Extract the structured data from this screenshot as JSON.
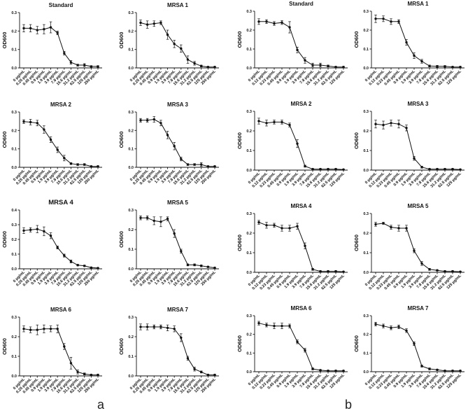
{
  "panel_labels": {
    "a": "a",
    "b": "b"
  },
  "chart_data": [
    {
      "panel": "a",
      "type": "line",
      "title": "Standard",
      "ylabel": "OD600",
      "ylim": [
        0,
        0.3
      ],
      "yticks": [
        "0.0",
        "0.1",
        "0.2",
        "0.3"
      ],
      "categories": [
        "0 µg/mL",
        "0.25 µg/mL",
        "0.45 µg/mL",
        "0.9 µg/mL",
        "1.9 µg/mL",
        "3.9 µg/mL",
        "7.8 µg/mL",
        "15.6 µg/mL",
        "31.2 µg/mL",
        "62.5 µg/mL",
        "125 µg/mL",
        "250 µg/mL"
      ],
      "series": [
        {
          "values": [
            0.215,
            0.215,
            0.205,
            0.21,
            0.22,
            0.19,
            0.08,
            0.03,
            0.015,
            0.015,
            0.008,
            0.008
          ],
          "errors": [
            0.02,
            0.02,
            0.02,
            0.025,
            0.03,
            0.01,
            0.01,
            0.01,
            0.005,
            0.008,
            0.004,
            0.004
          ]
        }
      ]
    },
    {
      "panel": "a",
      "type": "line",
      "title": "MRSA 1",
      "ylabel": "OD600",
      "ylim": [
        0,
        0.3
      ],
      "yticks": [
        "0.0",
        "0.1",
        "0.2",
        "0.3"
      ],
      "categories": [
        "0 µg/mL",
        "0.25 µg/mL",
        "0.45 µg/mL",
        "0.9 µg/mL",
        "1.9 µg/mL",
        "3.9 µg/mL",
        "7.8 µg/mL",
        "15.6 µg/mL",
        "31.2 µg/mL",
        "62.5 µg/mL",
        "125 µg/mL",
        "250 µg/mL"
      ],
      "series": [
        {
          "values": [
            0.245,
            0.235,
            0.24,
            0.245,
            0.18,
            0.13,
            0.105,
            0.045,
            0.025,
            0.01,
            0.005,
            0.005
          ],
          "errors": [
            0.015,
            0.02,
            0.015,
            0.01,
            0.025,
            0.02,
            0.02,
            0.02,
            0.01,
            0.005,
            0.003,
            0.003
          ]
        }
      ]
    },
    {
      "panel": "a",
      "type": "line",
      "title": "MRSA 2",
      "ylabel": "OD600",
      "ylim": [
        0,
        0.3
      ],
      "yticks": [
        "0.0",
        "0.1",
        "0.2",
        "0.3"
      ],
      "categories": [
        "0 µg/mL",
        "0.25 µg/mL",
        "0.45 µg/mL",
        "0.9 µg/mL",
        "1.9 µg/mL",
        "3.9 µg/mL",
        "7.8 µg/mL",
        "15.6 µg/mL",
        "31.2 µg/mL",
        "62.5 µg/mL",
        "125 µg/mL",
        "250 µg/mL"
      ],
      "series": [
        {
          "values": [
            0.248,
            0.245,
            0.24,
            0.205,
            0.15,
            0.095,
            0.05,
            0.02,
            0.015,
            0.015,
            0.005,
            0.005
          ],
          "errors": [
            0.01,
            0.015,
            0.015,
            0.02,
            0.015,
            0.015,
            0.015,
            0.005,
            0.005,
            0.005,
            0.003,
            0.003
          ]
        }
      ]
    },
    {
      "panel": "a",
      "type": "line",
      "title": "MRSA 3",
      "ylabel": "OD600",
      "ylim": [
        0,
        0.3
      ],
      "yticks": [
        "0.0",
        "0.1",
        "0.2",
        "0.3"
      ],
      "categories": [
        "0 µg/mL",
        "0.25 µg/mL",
        "0.45 µg/mL",
        "0.9 µg/mL",
        "1.9 µg/mL",
        "3.9 µg/mL",
        "7.8 µg/mL",
        "15.6 µg/mL",
        "31.2 µg/mL",
        "62.5 µg/mL",
        "125 µg/mL",
        "250 µg/mL"
      ],
      "series": [
        {
          "values": [
            0.255,
            0.255,
            0.26,
            0.24,
            0.175,
            0.115,
            0.045,
            0.015,
            0.015,
            0.015,
            0.005,
            0.005
          ],
          "errors": [
            0.01,
            0.01,
            0.015,
            0.015,
            0.02,
            0.02,
            0.01,
            0.005,
            0.005,
            0.01,
            0.003,
            0.003
          ]
        }
      ]
    },
    {
      "panel": "a",
      "type": "line",
      "title": "MRSA 4",
      "ylabel": "OD600",
      "ylim": [
        0,
        0.4
      ],
      "yticks": [
        "0.0",
        "0.1",
        "0.2",
        "0.3",
        "0.4"
      ],
      "categories": [
        "0 µg/mL",
        "0.25 µg/mL",
        "0.45 µg/mL",
        "0.9 µg/mL",
        "1.9 µg/mL",
        "3.9 µg/mL",
        "7.8 µg/mL",
        "15.6 µg/mL",
        "31.2 µg/mL",
        "62.5 µg/mL",
        "125 µg/mL",
        "250 µg/mL"
      ],
      "series": [
        {
          "values": [
            0.26,
            0.265,
            0.27,
            0.255,
            0.225,
            0.145,
            0.09,
            0.05,
            0.025,
            0.02,
            0.008,
            0.005
          ],
          "errors": [
            0.02,
            0.015,
            0.025,
            0.03,
            0.02,
            0.01,
            0.01,
            0.01,
            0.005,
            0.005,
            0.004,
            0.003
          ]
        }
      ]
    },
    {
      "panel": "a",
      "type": "line",
      "title": "MRSA 5",
      "ylabel": "OD600",
      "ylim": [
        0,
        0.3
      ],
      "yticks": [
        "0.0",
        "0.1",
        "0.2",
        "0.3"
      ],
      "categories": [
        "0 µg/mL",
        "0.25 µg/mL",
        "0.45 µg/mL",
        "0.9 µg/mL",
        "1.9 µg/mL",
        "3.9 µg/mL",
        "7.8 µg/mL",
        "15.6 µg/mL",
        "31.2 µg/mL",
        "62.5 µg/mL",
        "125 µg/mL",
        "250 µg/mL"
      ],
      "series": [
        {
          "values": [
            0.26,
            0.26,
            0.245,
            0.24,
            0.255,
            0.18,
            0.09,
            0.02,
            0.02,
            0.015,
            0.01,
            0.005
          ],
          "errors": [
            0.01,
            0.01,
            0.02,
            0.025,
            0.01,
            0.02,
            0.01,
            0.005,
            0.005,
            0.005,
            0.003,
            0.003
          ]
        }
      ]
    },
    {
      "panel": "a",
      "type": "line",
      "title": "MRSA 6",
      "ylabel": "OD600",
      "ylim": [
        0,
        0.3
      ],
      "yticks": [
        "0.0",
        "0.1",
        "0.2",
        "0.3"
      ],
      "categories": [
        "0 µg/mL",
        "0.25 µg/mL",
        "0.45 µg/mL",
        "0.9 µg/mL",
        "1.9 µg/mL",
        "3.9 µg/mL",
        "7.8 µg/mL",
        "15.6 µg/mL",
        "31.2 µg/mL",
        "62.5 µg/mL",
        "125 µg/mL",
        "250 µg/mL"
      ],
      "series": [
        {
          "values": [
            0.24,
            0.235,
            0.235,
            0.24,
            0.24,
            0.24,
            0.15,
            0.065,
            0.02,
            0.01,
            0.005,
            0.005
          ],
          "errors": [
            0.015,
            0.015,
            0.025,
            0.02,
            0.015,
            0.02,
            0.015,
            0.03,
            0.01,
            0.005,
            0.003,
            0.003
          ]
        }
      ]
    },
    {
      "panel": "a",
      "type": "line",
      "title": "MRSA 7",
      "ylabel": "OD600",
      "ylim": [
        0,
        0.3
      ],
      "yticks": [
        "0.0",
        "0.1",
        "0.2",
        "0.3"
      ],
      "categories": [
        "0 µg/mL",
        "0.25 µg/mL",
        "0.45 µg/mL",
        "0.9 µg/mL",
        "1.9 µg/mL",
        "3.9 µg/mL",
        "7.8 µg/mL",
        "15.6 µg/mL",
        "31.2 µg/mL",
        "62.5 µg/mL",
        "125 µg/mL",
        "250 µg/mL"
      ],
      "series": [
        {
          "values": [
            0.25,
            0.25,
            0.25,
            0.25,
            0.245,
            0.24,
            0.195,
            0.09,
            0.035,
            0.02,
            0.005,
            0.005
          ],
          "errors": [
            0.015,
            0.015,
            0.01,
            0.01,
            0.015,
            0.015,
            0.02,
            0.01,
            0.01,
            0.005,
            0.003,
            0.003
          ]
        }
      ]
    },
    {
      "panel": "b",
      "type": "line",
      "title": "Standard",
      "ylabel": "OD600",
      "ylim": [
        0,
        0.3
      ],
      "yticks": [
        "0.0",
        "0.1",
        "0.2",
        "0.3"
      ],
      "categories": [
        "0 µg/mL",
        "0.12 µg/mL",
        "0.23 µg/mL",
        "0.45 µg/mL",
        "0.9 µg/mL",
        "1.9 µg/mL",
        "3.9 µg/mL",
        "7.8 µg/mL",
        "15.6 µg/mL",
        "31.2 µg/mL",
        "62.5 µg/mL",
        "125 µg/mL"
      ],
      "series": [
        {
          "values": [
            0.245,
            0.245,
            0.235,
            0.24,
            0.215,
            0.095,
            0.04,
            0.015,
            0.015,
            0.01,
            0.005,
            0.005
          ],
          "errors": [
            0.015,
            0.01,
            0.01,
            0.01,
            0.03,
            0.015,
            0.015,
            0.01,
            0.01,
            0.005,
            0.003,
            0.003
          ]
        }
      ]
    },
    {
      "panel": "b",
      "type": "line",
      "title": "MRSA 1",
      "ylabel": "OD600",
      "ylim": [
        0,
        0.3
      ],
      "yticks": [
        "0.0",
        "0.1",
        "0.2",
        "0.3"
      ],
      "categories": [
        "0 µg/mL",
        "0.12 µg/mL",
        "0.23 µg/mL",
        "0.45 µg/mL",
        "0.9 µg/mL",
        "1.9 µg/mL",
        "3.9 µg/mL",
        "7.8 µg/mL",
        "15.6 µg/mL",
        "31.2 µg/mL",
        "62.5 µg/mL",
        "125 µg/mL"
      ],
      "series": [
        {
          "values": [
            0.26,
            0.26,
            0.245,
            0.245,
            0.135,
            0.065,
            0.035,
            0.01,
            0.008,
            0.008,
            0.005,
            0.005
          ],
          "errors": [
            0.02,
            0.015,
            0.015,
            0.01,
            0.015,
            0.015,
            0.01,
            0.005,
            0.005,
            0.004,
            0.003,
            0.003
          ]
        }
      ]
    },
    {
      "panel": "b",
      "type": "line",
      "title": "MRSA 2",
      "ylabel": "OD600",
      "ylim": [
        0,
        0.3
      ],
      "yticks": [
        "0.0",
        "0.1",
        "0.2",
        "0.3"
      ],
      "categories": [
        "0 µg/mL",
        "0.12 µg/mL",
        "0.23 µg/mL",
        "0.45 µg/mL",
        "0.9 µg/mL",
        "1.9 µg/mL",
        "3.9 µg/mL",
        "7.8 µg/mL",
        "15.6 µg/mL",
        "31.2 µg/mL",
        "62.5 µg/mL",
        "125 µg/mL"
      ],
      "series": [
        {
          "values": [
            0.25,
            0.24,
            0.245,
            0.245,
            0.23,
            0.135,
            0.02,
            0.005,
            0.005,
            0.005,
            0.005,
            0.003
          ],
          "errors": [
            0.015,
            0.015,
            0.01,
            0.01,
            0.01,
            0.02,
            0.005,
            0.003,
            0.003,
            0.003,
            0.003,
            0.002
          ]
        }
      ]
    },
    {
      "panel": "b",
      "type": "line",
      "title": "MRSA 3",
      "ylabel": "OD600",
      "ylim": [
        0,
        0.3
      ],
      "yticks": [
        "0.0",
        "0.1",
        "0.2",
        "0.3"
      ],
      "categories": [
        "0 µg/mL",
        "0.12 µg/mL",
        "0.23 µg/mL",
        "0.45 µg/mL",
        "0.9 µg/mL",
        "1.9 µg/mL",
        "3.9 µg/mL",
        "7.8 µg/mL",
        "15.6 µg/mL",
        "31.2 µg/mL",
        "62.5 µg/mL",
        "125 µg/mL"
      ],
      "series": [
        {
          "values": [
            0.235,
            0.23,
            0.24,
            0.235,
            0.215,
            0.06,
            0.015,
            0.005,
            0.005,
            0.005,
            0.005,
            0.003
          ],
          "errors": [
            0.02,
            0.02,
            0.015,
            0.02,
            0.015,
            0.01,
            0.005,
            0.003,
            0.003,
            0.003,
            0.003,
            0.002
          ]
        }
      ]
    },
    {
      "panel": "b",
      "type": "line",
      "title": "MRSA 4",
      "ylabel": "OD600",
      "ylim": [
        0,
        0.3
      ],
      "yticks": [
        "0.0",
        "0.1",
        "0.2",
        "0.3"
      ],
      "categories": [
        "0 µg/mL",
        "0.12 µg/mL",
        "0.23 µg/mL",
        "0.45 µg/mL",
        "0.9 µg/mL",
        "1.9 µg/mL",
        "3.9 µg/mL",
        "7.8 µg/mL",
        "15.6 µg/mL",
        "31.2 µg/mL",
        "62.5 µg/mL",
        "125 µg/mL"
      ],
      "series": [
        {
          "values": [
            0.255,
            0.24,
            0.24,
            0.225,
            0.225,
            0.235,
            0.135,
            0.015,
            0.005,
            0.005,
            0.005,
            0.003
          ],
          "errors": [
            0.01,
            0.015,
            0.01,
            0.015,
            0.015,
            0.015,
            0.015,
            0.005,
            0.003,
            0.003,
            0.003,
            0.002
          ]
        }
      ]
    },
    {
      "panel": "b",
      "type": "line",
      "title": "MRSA 5",
      "ylabel": "OD600",
      "ylim": [
        0,
        0.3
      ],
      "yticks": [
        "0.0",
        "0.1",
        "0.2",
        "0.3"
      ],
      "categories": [
        "0 µg/mL",
        "0.12 µg/mL",
        "0.23 µg/mL",
        "0.45 µg/mL",
        "0.9 µg/mL",
        "1.9 µg/mL",
        "3.9 µg/mL",
        "7.8 µg/mL",
        "15.6 µg/mL",
        "31.2 µg/mL",
        "62.5 µg/mL",
        "125 µg/mL"
      ],
      "series": [
        {
          "values": [
            0.245,
            0.25,
            0.23,
            0.225,
            0.225,
            0.11,
            0.045,
            0.015,
            0.01,
            0.005,
            0.005,
            0.003
          ],
          "errors": [
            0.01,
            0.005,
            0.01,
            0.015,
            0.015,
            0.01,
            0.01,
            0.005,
            0.003,
            0.003,
            0.003,
            0.002
          ]
        }
      ]
    },
    {
      "panel": "b",
      "type": "line",
      "title": "MRSA 6",
      "ylabel": "OD600",
      "ylim": [
        0,
        0.3
      ],
      "yticks": [
        "0.0",
        "0.1",
        "0.2",
        "0.3"
      ],
      "categories": [
        "0 µg/mL",
        "0.12 µg/mL",
        "0.23 µg/mL",
        "0.45 µg/mL",
        "0.9 µg/mL",
        "1.9 µg/mL",
        "3.9 µg/mL",
        "7.8 µg/mL",
        "15.6 µg/mL",
        "31.2 µg/mL",
        "62.5 µg/mL",
        "125 µg/mL"
      ],
      "series": [
        {
          "values": [
            0.26,
            0.25,
            0.245,
            0.245,
            0.245,
            0.16,
            0.115,
            0.015,
            0.008,
            0.005,
            0.005,
            0.005
          ],
          "errors": [
            0.01,
            0.01,
            0.015,
            0.015,
            0.01,
            0.01,
            0.01,
            0.005,
            0.003,
            0.003,
            0.003,
            0.002
          ]
        }
      ]
    },
    {
      "panel": "b",
      "type": "line",
      "title": "MRSA 7",
      "ylabel": "OD600",
      "ylim": [
        0,
        0.3
      ],
      "yticks": [
        "0.0",
        "0.1",
        "0.2",
        "0.3"
      ],
      "categories": [
        "0 µg/mL",
        "0.12 µg/mL",
        "0.23 µg/mL",
        "0.45 µg/mL",
        "0.9 µg/mL",
        "1.9 µg/mL",
        "3.9 µg/mL",
        "7.8 µg/mL",
        "15.6 µg/mL",
        "31.2 µg/mL",
        "62.5 µg/mL",
        "125 µg/mL"
      ],
      "series": [
        {
          "values": [
            0.255,
            0.245,
            0.235,
            0.24,
            0.22,
            0.15,
            0.03,
            0.015,
            0.01,
            0.005,
            0.005,
            0.005
          ],
          "errors": [
            0.01,
            0.01,
            0.01,
            0.01,
            0.01,
            0.01,
            0.005,
            0.005,
            0.003,
            0.003,
            0.003,
            0.002
          ]
        }
      ]
    }
  ]
}
